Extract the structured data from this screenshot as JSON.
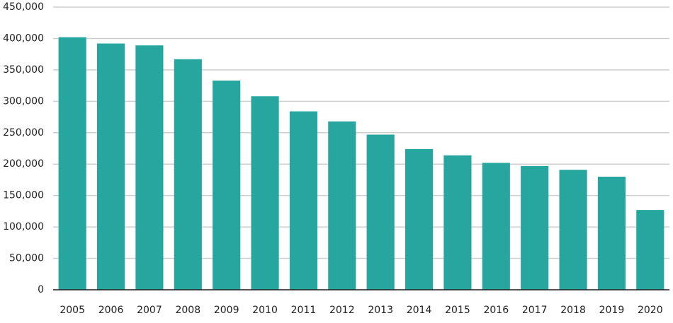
{
  "chart_data": {
    "type": "bar",
    "categories": [
      "2005",
      "2006",
      "2007",
      "2008",
      "2009",
      "2010",
      "2011",
      "2012",
      "2013",
      "2014",
      "2015",
      "2016",
      "2017",
      "2018",
      "2019",
      "2020"
    ],
    "values": [
      402000,
      392000,
      389000,
      367000,
      333000,
      308000,
      284000,
      268000,
      247000,
      224000,
      214000,
      202000,
      197000,
      191000,
      180000,
      127000
    ],
    "color": "#26a69f",
    "ylim": [
      0,
      450000
    ],
    "yticks": [
      0,
      {
        "value": 50000,
        "label": "50,000"
      },
      {
        "value": 100000,
        "label": "100,000"
      },
      {
        "value": 150000,
        "label": "150,000"
      },
      {
        "value": 200000,
        "label": "200,000"
      },
      {
        "value": 250000,
        "label": "250,000"
      },
      {
        "value": 300000,
        "label": "300,000"
      },
      {
        "value": 350000,
        "label": "350,000"
      },
      {
        "value": 400000,
        "label": "400,000"
      },
      {
        "value": 450000,
        "label": "450,000"
      }
    ],
    "grid": true
  }
}
